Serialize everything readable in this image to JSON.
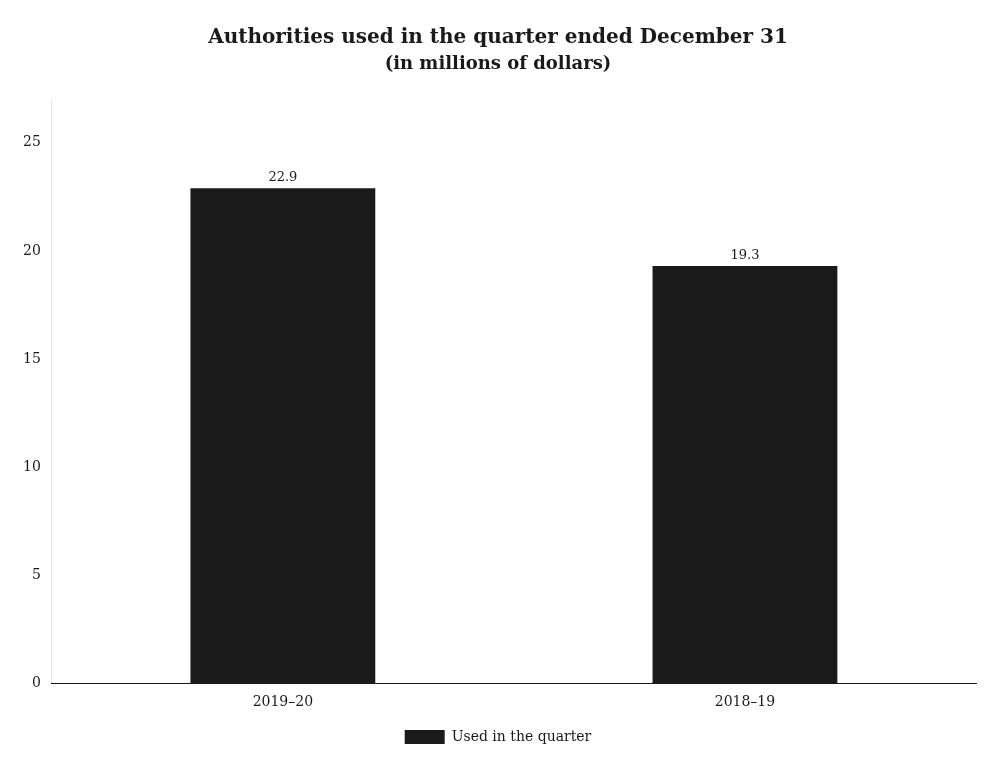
{
  "chart_data": {
    "type": "bar",
    "title": "Authorities used in the quarter ended December 31",
    "subtitle": "(in millions of dollars)",
    "categories": [
      "2019–20",
      "2018–19"
    ],
    "series": [
      {
        "name": "Used in the quarter",
        "color": "#1a1a1a",
        "values": [
          22.9,
          19.3
        ]
      }
    ],
    "ylim": [
      0,
      27
    ],
    "yticks": [
      0,
      5,
      10,
      15,
      20,
      25
    ],
    "grid": false,
    "legend": "bottom",
    "data_labels": true
  }
}
